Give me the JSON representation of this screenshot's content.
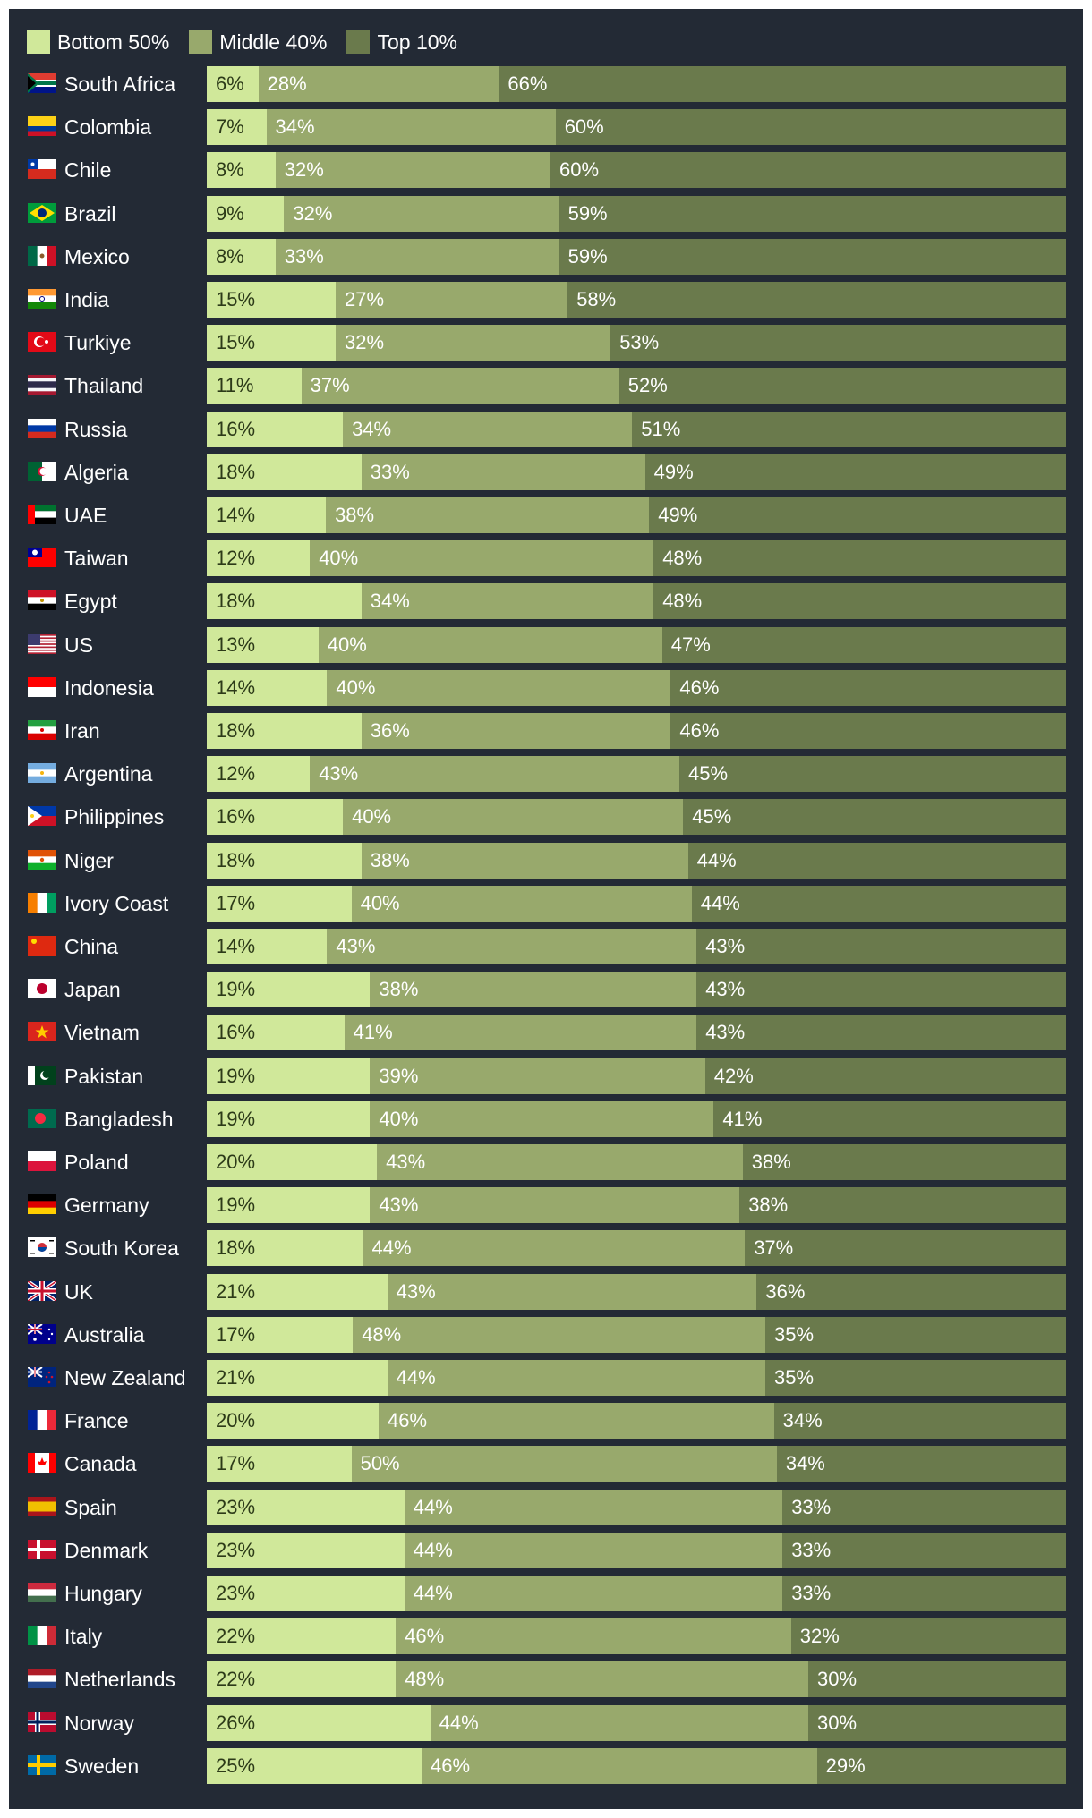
{
  "colors": {
    "background": "#232a35",
    "bottom50": "#d0e89a",
    "middle40": "#98a96c",
    "top10": "#6a7a4c"
  },
  "chart_data": {
    "type": "bar",
    "orientation": "horizontal",
    "stacked": true,
    "normalized": true,
    "legend": [
      "Bottom 50%",
      "Middle 40%",
      "Top 10%"
    ],
    "legend_position": "top-left",
    "categories": [
      "South Africa",
      "Colombia",
      "Chile",
      "Brazil",
      "Mexico",
      "India",
      "Turkiye",
      "Thailand",
      "Russia",
      "Algeria",
      "UAE",
      "Taiwan",
      "Egypt",
      "US",
      "Indonesia",
      "Iran",
      "Argentina",
      "Philippines",
      "Niger",
      "Ivory Coast",
      "China",
      "Japan",
      "Vietnam",
      "Pakistan",
      "Bangladesh",
      "Poland",
      "Germany",
      "South Korea",
      "UK",
      "Australia",
      "New Zealand",
      "France",
      "Canada",
      "Spain",
      "Denmark",
      "Hungary",
      "Italy",
      "Netherlands",
      "Norway",
      "Sweden"
    ],
    "series": [
      {
        "name": "Bottom 50%",
        "values": [
          6,
          7,
          8,
          9,
          8,
          15,
          15,
          11,
          16,
          18,
          14,
          12,
          18,
          13,
          14,
          18,
          12,
          16,
          18,
          17,
          14,
          19,
          16,
          19,
          19,
          20,
          19,
          18,
          21,
          17,
          21,
          20,
          17,
          23,
          23,
          23,
          22,
          22,
          26,
          25
        ]
      },
      {
        "name": "Middle 40%",
        "values": [
          28,
          34,
          32,
          32,
          33,
          27,
          32,
          37,
          34,
          33,
          38,
          40,
          34,
          40,
          40,
          36,
          43,
          40,
          38,
          40,
          43,
          38,
          41,
          39,
          40,
          43,
          43,
          44,
          43,
          48,
          44,
          46,
          50,
          44,
          44,
          44,
          46,
          48,
          44,
          46
        ]
      },
      {
        "name": "Top 10%",
        "values": [
          66,
          60,
          60,
          59,
          59,
          58,
          53,
          52,
          51,
          49,
          49,
          48,
          48,
          47,
          46,
          46,
          45,
          45,
          44,
          44,
          43,
          43,
          43,
          42,
          41,
          38,
          38,
          37,
          36,
          35,
          35,
          34,
          34,
          33,
          33,
          33,
          32,
          30,
          30,
          29
        ]
      }
    ],
    "flags": [
      "south-africa",
      "colombia",
      "chile",
      "brazil",
      "mexico",
      "india",
      "turkiye",
      "thailand",
      "russia",
      "algeria",
      "uae",
      "taiwan",
      "egypt",
      "us",
      "indonesia",
      "iran",
      "argentina",
      "philippines",
      "niger",
      "ivory-coast",
      "china",
      "japan",
      "vietnam",
      "pakistan",
      "bangladesh",
      "poland",
      "germany",
      "south-korea",
      "uk",
      "australia",
      "new-zealand",
      "france",
      "canada",
      "spain",
      "denmark",
      "hungary",
      "italy",
      "netherlands",
      "norway",
      "sweden"
    ],
    "value_suffix": "%"
  }
}
